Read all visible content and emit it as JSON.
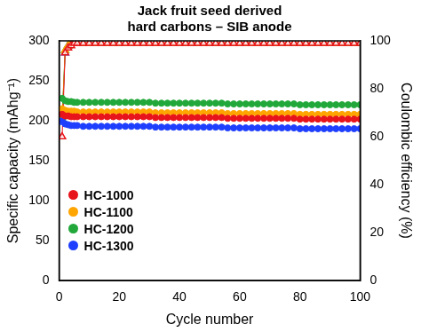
{
  "chart_data": {
    "type": "line",
    "title": [
      "Jack fruit seed derived",
      "hard carbons – SIB anode"
    ],
    "xlabel": "Cycle number",
    "ylabel": "Specific capacity (mAhg⁻¹)",
    "y2label": "Coulombic efficiency (%)",
    "x": [
      1,
      2,
      3,
      4,
      5,
      6,
      8,
      10,
      12,
      14,
      16,
      18,
      20,
      22,
      24,
      26,
      28,
      30,
      32,
      34,
      36,
      38,
      40,
      42,
      44,
      46,
      48,
      50,
      52,
      54,
      56,
      58,
      60,
      62,
      64,
      66,
      68,
      70,
      72,
      74,
      76,
      78,
      80,
      82,
      84,
      86,
      88,
      90,
      92,
      94,
      96,
      98,
      100
    ],
    "xlim": [
      0,
      100
    ],
    "xticks": [
      0,
      20,
      40,
      60,
      80,
      100
    ],
    "ylim": [
      0,
      300
    ],
    "yticks": [
      0,
      50,
      100,
      150,
      200,
      250,
      300
    ],
    "y2lim": [
      0,
      100
    ],
    "y2ticks": [
      0,
      20,
      40,
      60,
      80,
      100
    ],
    "grid": false,
    "legend": "lower left",
    "series": [
      {
        "name": "HC-1000",
        "color": "#e8141b",
        "marker": "circle",
        "values": [
          208,
          206,
          206,
          205,
          205,
          205,
          205,
          205,
          205,
          205,
          205,
          205,
          205,
          205,
          205,
          205,
          205,
          205,
          204,
          204,
          204,
          204,
          204,
          204,
          204,
          204,
          204,
          204,
          204,
          204,
          203,
          203,
          203,
          203,
          203,
          203,
          203,
          203,
          203,
          203,
          203,
          203,
          202,
          202,
          202,
          202,
          202,
          202,
          202,
          202,
          202,
          202,
          202
        ]
      },
      {
        "name": "HC-1100",
        "color": "#ffa500",
        "marker": "circle",
        "values": [
          215,
          213,
          212,
          212,
          212,
          211,
          211,
          211,
          211,
          211,
          211,
          211,
          211,
          211,
          211,
          211,
          211,
          211,
          210,
          210,
          210,
          210,
          210,
          210,
          210,
          210,
          210,
          210,
          210,
          210,
          209,
          209,
          209,
          209,
          209,
          209,
          209,
          209,
          209,
          209,
          209,
          209,
          208,
          208,
          208,
          208,
          208,
          208,
          208,
          208,
          208,
          208,
          208
        ]
      },
      {
        "name": "HC-1200",
        "color": "#22a83a",
        "marker": "circle",
        "values": [
          228,
          225,
          224,
          224,
          223,
          223,
          223,
          223,
          223,
          223,
          223,
          223,
          223,
          223,
          223,
          223,
          223,
          223,
          222,
          222,
          222,
          222,
          222,
          222,
          222,
          222,
          222,
          222,
          222,
          222,
          221,
          221,
          221,
          221,
          221,
          221,
          221,
          221,
          221,
          221,
          221,
          221,
          220,
          220,
          220,
          220,
          220,
          220,
          220,
          220,
          220,
          220,
          220
        ]
      },
      {
        "name": "HC-1300",
        "color": "#1f3fff",
        "marker": "circle",
        "values": [
          200,
          196,
          195,
          194,
          194,
          194,
          193,
          193,
          193,
          193,
          193,
          193,
          193,
          193,
          193,
          193,
          193,
          193,
          192,
          192,
          192,
          192,
          192,
          192,
          192,
          192,
          192,
          192,
          192,
          192,
          191,
          191,
          191,
          191,
          191,
          191,
          191,
          191,
          191,
          191,
          191,
          191,
          190,
          190,
          190,
          190,
          190,
          190,
          190,
          190,
          190,
          190,
          190
        ]
      },
      {
        "name": "HC-1000",
        "color": "#e8141b",
        "marker": "triangle",
        "axis": "y2",
        "values": [
          60,
          95,
          97,
          98,
          99,
          99,
          99,
          99,
          99,
          99,
          99,
          99,
          99,
          99,
          99,
          99,
          99,
          99,
          99,
          99,
          99,
          99,
          99,
          99,
          99,
          99,
          99,
          99,
          99,
          99,
          99,
          99,
          99,
          99,
          99,
          99,
          99,
          99,
          99,
          99,
          99,
          99,
          99,
          99,
          99,
          99,
          99,
          99,
          99,
          99,
          99,
          99,
          99
        ]
      },
      {
        "name": "HC-1100",
        "color": "#ffa500",
        "marker": "triangle",
        "axis": "y2",
        "values": [
          67,
          96,
          98,
          99,
          99,
          99,
          99,
          99,
          99,
          99,
          99,
          99,
          99,
          99,
          99,
          99,
          99,
          99,
          99,
          99,
          99,
          99,
          99,
          99,
          99,
          99,
          99,
          99,
          99,
          99,
          99,
          99,
          99,
          99,
          99,
          99,
          99,
          99,
          99,
          99,
          99,
          99,
          99,
          99,
          99,
          99,
          99,
          99,
          99,
          99,
          99,
          99,
          99
        ]
      },
      {
        "name": "HC-1200",
        "color": "#22a83a",
        "marker": "triangle",
        "axis": "y2",
        "values": [
          68,
          96,
          98,
          99,
          99,
          99,
          99,
          99,
          99,
          99,
          99,
          99,
          99,
          99,
          99,
          99,
          99,
          99,
          99,
          99,
          99,
          99,
          99,
          99,
          99,
          99,
          99,
          99,
          99,
          99,
          99,
          99,
          99,
          99,
          99,
          99,
          99,
          99,
          99,
          99,
          99,
          99,
          99,
          99,
          99,
          99,
          99,
          99,
          99,
          99,
          99,
          99,
          99
        ]
      },
      {
        "name": "HC-1300",
        "color": "#1f3fff",
        "marker": "triangle",
        "axis": "y2",
        "values": [
          66,
          95,
          98,
          99,
          99,
          99,
          99,
          99,
          99,
          99,
          99,
          99,
          99,
          99,
          99,
          99,
          99,
          99,
          99,
          99,
          99,
          99,
          99,
          99,
          99,
          99,
          99,
          99,
          99,
          99,
          99,
          99,
          99,
          99,
          99,
          99,
          99,
          99,
          99,
          99,
          99,
          99,
          99,
          99,
          99,
          99,
          99,
          99,
          99,
          99,
          99,
          99,
          99
        ]
      }
    ]
  }
}
